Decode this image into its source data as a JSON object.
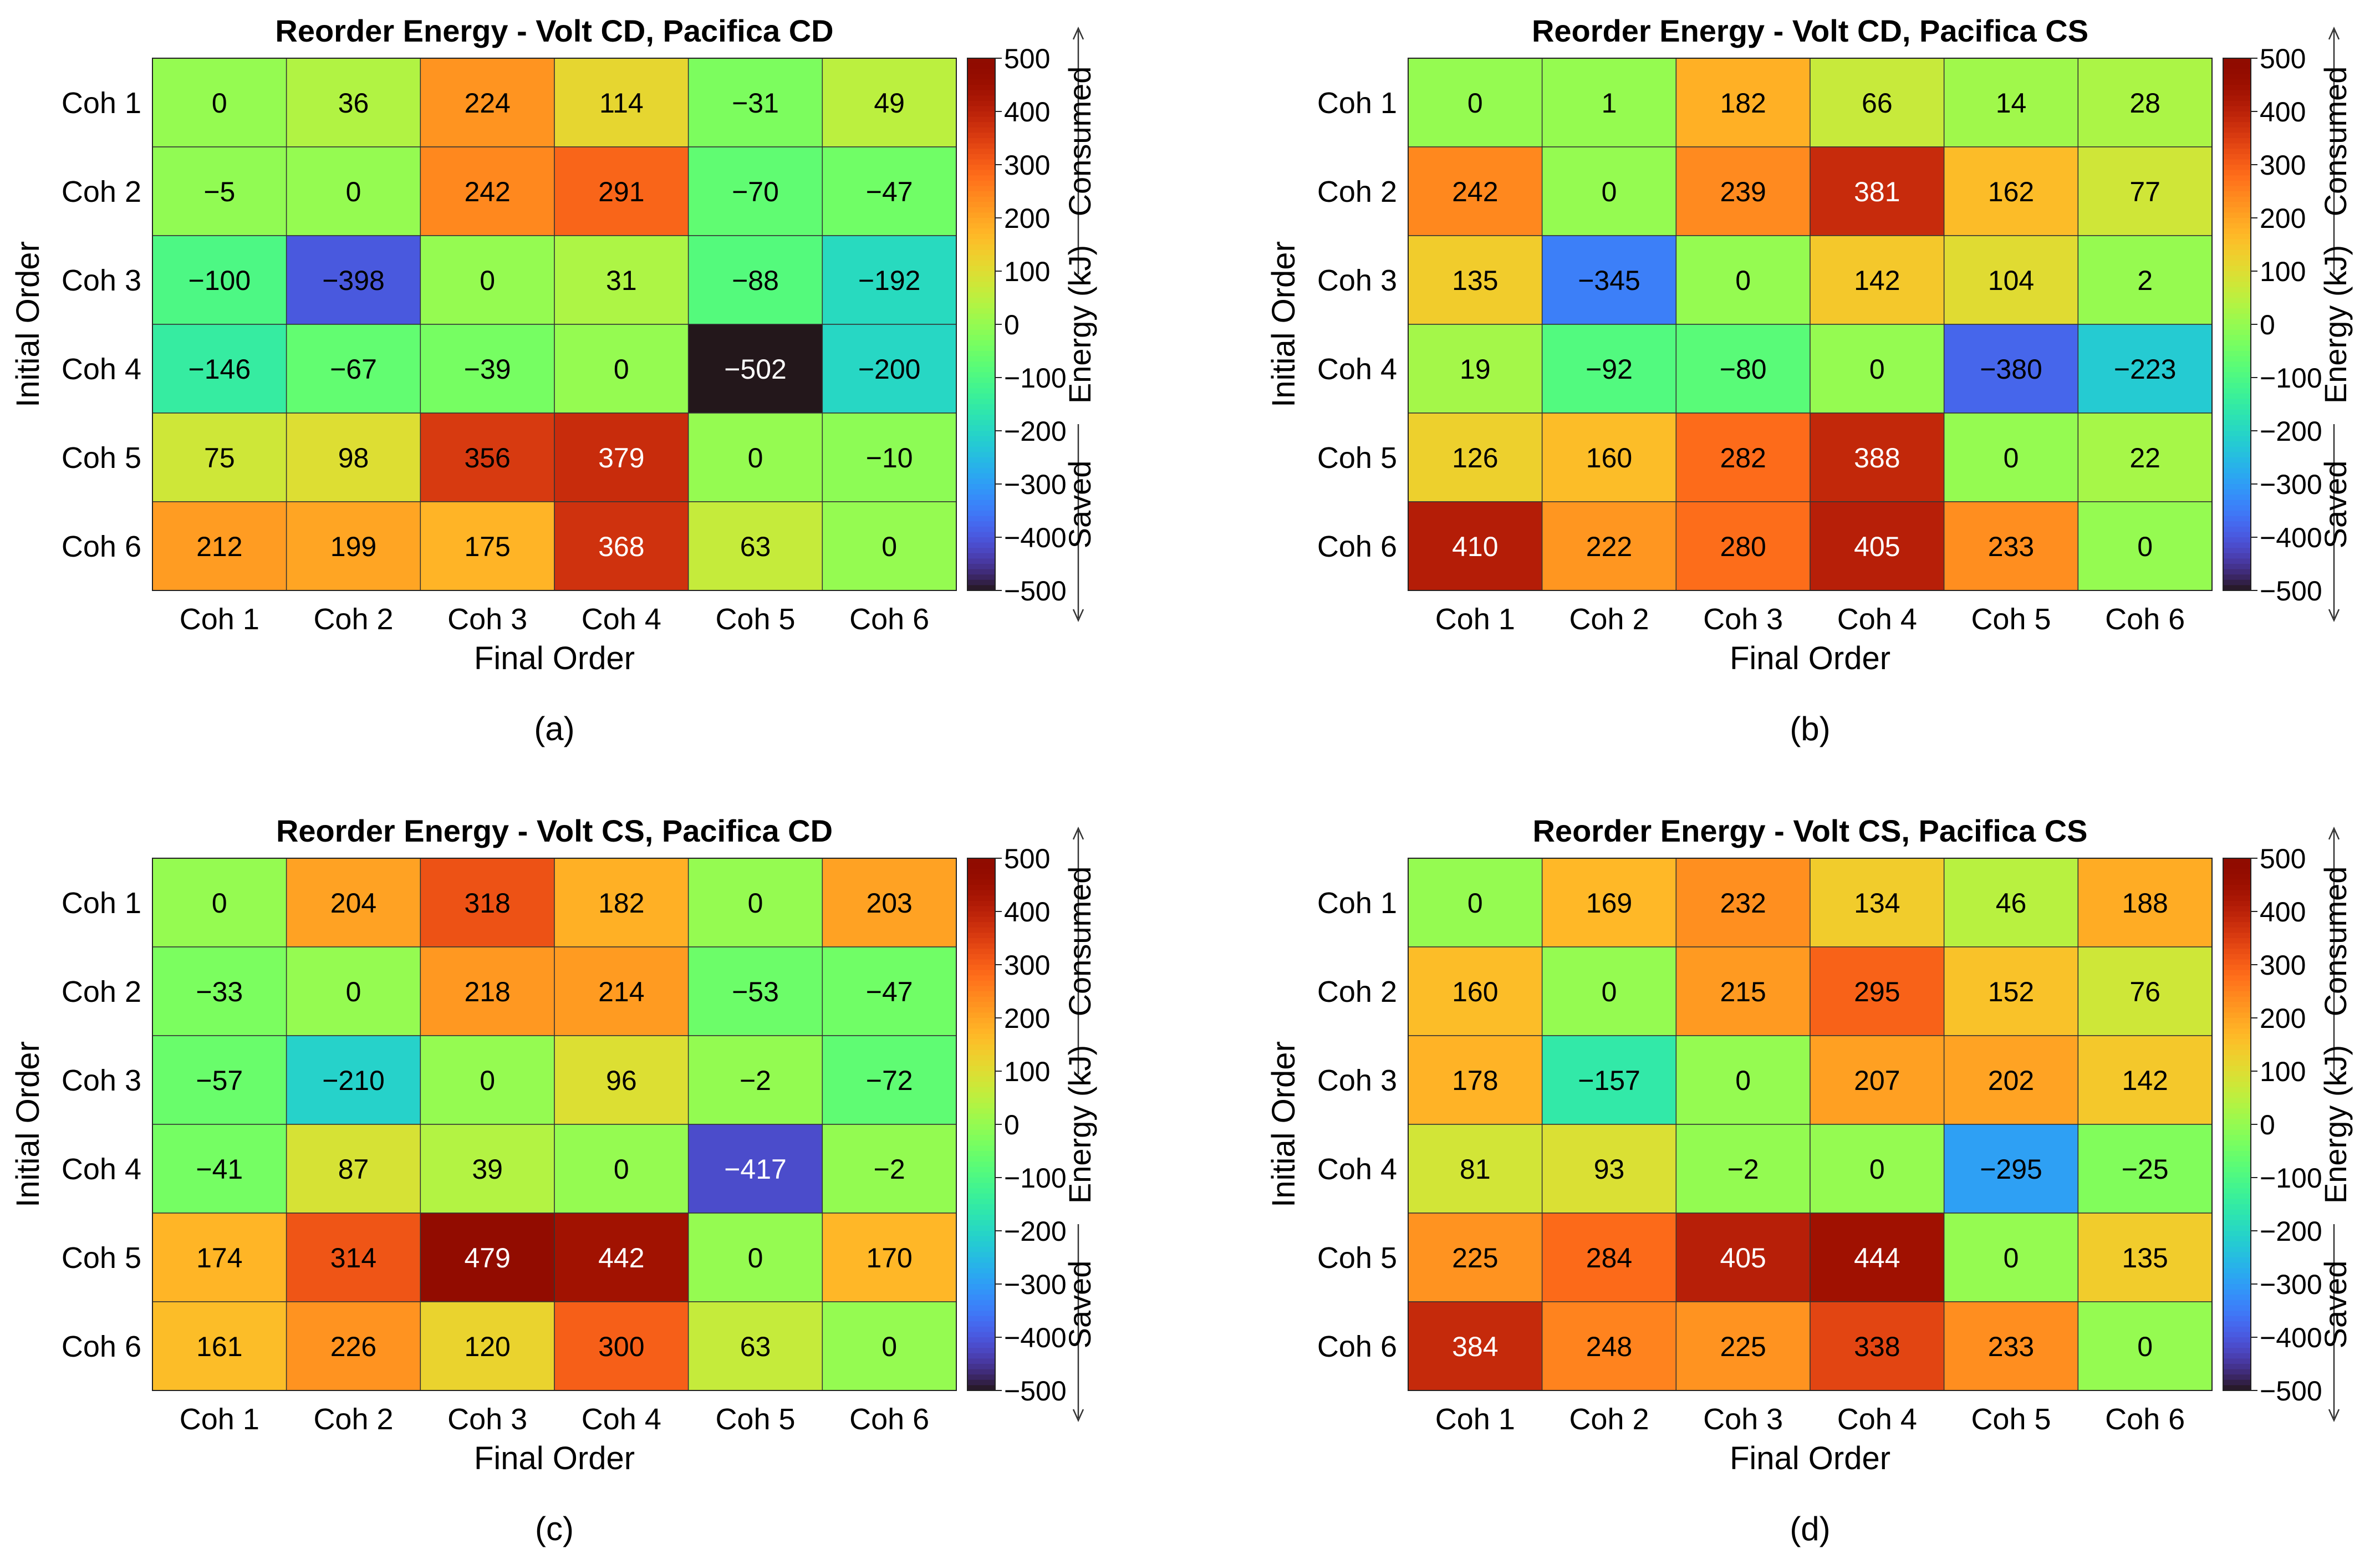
{
  "figure": {
    "row_labels": [
      "Coh 1",
      "Coh 2",
      "Coh 3",
      "Coh 4",
      "Coh 5",
      "Coh 6"
    ],
    "col_labels": [
      "Coh 1",
      "Coh 2",
      "Coh 3",
      "Coh 4",
      "Coh 5",
      "Coh 6"
    ],
    "xlabel": "Final Order",
    "ylabel": "Initial Order",
    "colorbar": {
      "label": "Energy (kJ)",
      "top_label": "Consumed",
      "bottom_label": "Saved",
      "range": [
        -500,
        500
      ],
      "ticks": [
        "500",
        "400",
        "300",
        "200",
        "100",
        "0",
        "−100",
        "−200",
        "−300",
        "−400",
        "−500"
      ],
      "colormap": "turbo"
    }
  },
  "chart_data": [
    {
      "type": "heatmap",
      "title": "Reorder Energy - Volt CD, Pacifica CD",
      "caption": "(a)",
      "values": [
        [
          0,
          36,
          224,
          114,
          -31,
          49
        ],
        [
          -5,
          0,
          242,
          291,
          -70,
          -47
        ],
        [
          -100,
          -398,
          0,
          31,
          -88,
          -192
        ],
        [
          -146,
          -67,
          -39,
          0,
          -502,
          -200
        ],
        [
          75,
          98,
          356,
          379,
          0,
          -10
        ],
        [
          212,
          199,
          175,
          368,
          63,
          0
        ]
      ]
    },
    {
      "type": "heatmap",
      "title": "Reorder Energy - Volt CD, Pacifica CS",
      "caption": "(b)",
      "values": [
        [
          0,
          1,
          182,
          66,
          14,
          28
        ],
        [
          242,
          0,
          239,
          381,
          162,
          77
        ],
        [
          135,
          -345,
          0,
          142,
          104,
          2
        ],
        [
          19,
          -92,
          -80,
          0,
          -380,
          -223
        ],
        [
          126,
          160,
          282,
          388,
          0,
          22
        ],
        [
          410,
          222,
          280,
          405,
          233,
          0
        ]
      ]
    },
    {
      "type": "heatmap",
      "title": "Reorder Energy - Volt CS, Pacifica CD",
      "caption": "(c)",
      "values": [
        [
          0,
          204,
          318,
          182,
          0,
          203
        ],
        [
          -33,
          0,
          218,
          214,
          -53,
          -47
        ],
        [
          -57,
          -210,
          0,
          96,
          -2,
          -72
        ],
        [
          -41,
          87,
          39,
          0,
          -417,
          -2
        ],
        [
          174,
          314,
          479,
          442,
          0,
          170
        ],
        [
          161,
          226,
          120,
          300,
          63,
          0
        ]
      ]
    },
    {
      "type": "heatmap",
      "title": "Reorder Energy - Volt CS, Pacifica CS",
      "caption": "(d)",
      "values": [
        [
          0,
          169,
          232,
          134,
          46,
          188
        ],
        [
          160,
          0,
          215,
          295,
          152,
          76
        ],
        [
          178,
          -157,
          0,
          207,
          202,
          142
        ],
        [
          81,
          93,
          -2,
          0,
          -295,
          -25
        ],
        [
          225,
          284,
          405,
          444,
          0,
          135
        ],
        [
          384,
          248,
          225,
          338,
          233,
          0
        ]
      ]
    }
  ]
}
